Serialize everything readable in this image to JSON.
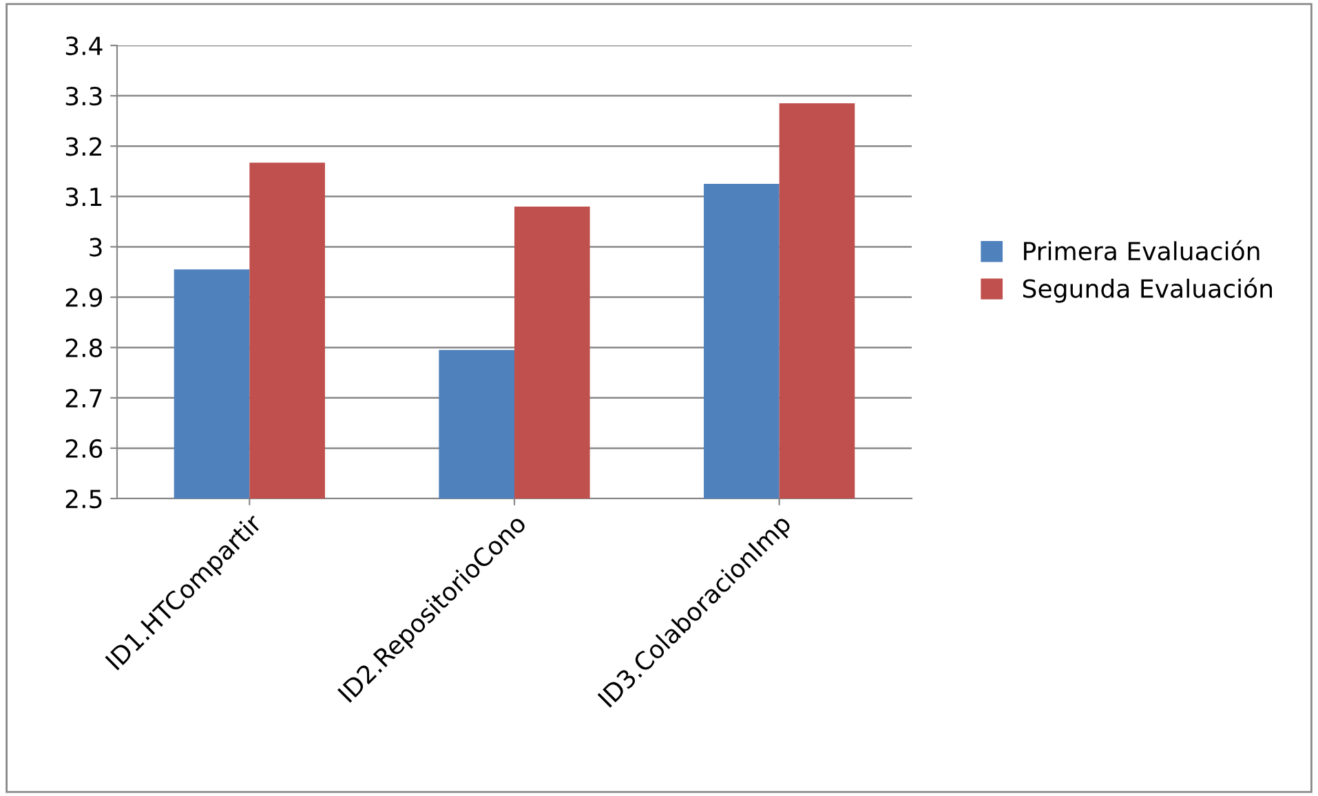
{
  "chart_data": {
    "type": "bar",
    "categories": [
      "ID1.HTCompartir",
      "ID2.RepositorioCono",
      "ID3.ColaboracionImp"
    ],
    "series": [
      {
        "name": "Primera Evaluación",
        "color": "#4f81bd",
        "values": [
          2.955,
          2.795,
          3.125
        ]
      },
      {
        "name": "Segunda Evaluación",
        "color": "#c0504d",
        "values": [
          3.167,
          3.08,
          3.285
        ]
      }
    ],
    "ylim": [
      2.5,
      3.4
    ],
    "yticks": [
      {
        "value": 2.5,
        "label": "2.5"
      },
      {
        "value": 2.6,
        "label": "2.6"
      },
      {
        "value": 2.7,
        "label": "2.7"
      },
      {
        "value": 2.8,
        "label": "2.8"
      },
      {
        "value": 2.9,
        "label": "2.9"
      },
      {
        "value": 3.0,
        "label": "3"
      },
      {
        "value": 3.1,
        "label": "3.1"
      },
      {
        "value": 3.2,
        "label": "3.2"
      },
      {
        "value": 3.3,
        "label": "3.3"
      },
      {
        "value": 3.4,
        "label": "3.4"
      }
    ],
    "grid": "y",
    "legend": "right"
  }
}
